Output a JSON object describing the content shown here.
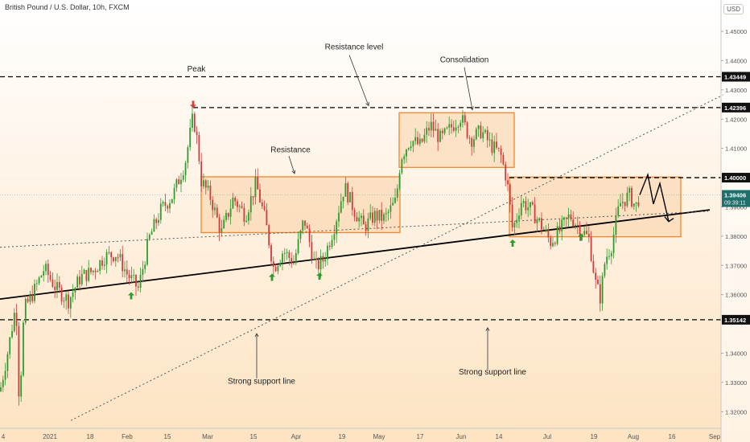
{
  "header": {
    "title": "British Pound / U.S. Dollar, 10h, FXCM",
    "currency": "USD"
  },
  "colors": {
    "bg_top": "#ffffff",
    "bg_bottom": "#fde3c2",
    "up": "#2e9b2e",
    "down": "#d03a3a",
    "box_stroke": "#f5852a",
    "box_fill": "#f9c99a",
    "price_tag": "#1f6f6a",
    "arrow_green": "#2e9b2e",
    "arrow_red": "#e53935"
  },
  "chart_data": {
    "type": "candlestick",
    "ylim": [
      1.315,
      1.458
    ],
    "y_ticks": [
      {
        "v": 1.45,
        "label": "1.45000"
      },
      {
        "v": 1.44,
        "label": "1.44000"
      },
      {
        "v": 1.43,
        "label": "1.43000"
      },
      {
        "v": 1.42,
        "label": "1.42000"
      },
      {
        "v": 1.41,
        "label": "1.41000"
      },
      {
        "v": 1.39,
        "label": "1.39000"
      },
      {
        "v": 1.38,
        "label": "1.38000"
      },
      {
        "v": 1.37,
        "label": "1.37000"
      },
      {
        "v": 1.36,
        "label": "1.36000"
      },
      {
        "v": 1.34,
        "label": "1.34000"
      },
      {
        "v": 1.33,
        "label": "1.33000"
      },
      {
        "v": 1.32,
        "label": "1.32000"
      }
    ],
    "x_range": [
      0,
      900
    ],
    "x_ticks": [
      {
        "x": 4,
        "label": "4"
      },
      {
        "x": 62,
        "label": "2021"
      },
      {
        "x": 112,
        "label": "18"
      },
      {
        "x": 158,
        "label": "Feb"
      },
      {
        "x": 208,
        "label": "15"
      },
      {
        "x": 258,
        "label": "Mar"
      },
      {
        "x": 315,
        "label": "15"
      },
      {
        "x": 368,
        "label": "Apr"
      },
      {
        "x": 425,
        "label": "19"
      },
      {
        "x": 471,
        "label": "May"
      },
      {
        "x": 522,
        "label": "17"
      },
      {
        "x": 573,
        "label": "Jun"
      },
      {
        "x": 620,
        "label": "14"
      },
      {
        "x": 680,
        "label": "Jul"
      },
      {
        "x": 738,
        "label": "19"
      },
      {
        "x": 787,
        "label": "Aug"
      },
      {
        "x": 835,
        "label": "16"
      },
      {
        "x": 888,
        "label": "Sep"
      }
    ],
    "price_path": [
      [
        0,
        1.327
      ],
      [
        10,
        1.341
      ],
      [
        20,
        1.357
      ],
      [
        24,
        1.322
      ],
      [
        30,
        1.355
      ],
      [
        42,
        1.361
      ],
      [
        55,
        1.369
      ],
      [
        70,
        1.362
      ],
      [
        85,
        1.358
      ],
      [
        100,
        1.366
      ],
      [
        115,
        1.368
      ],
      [
        130,
        1.373
      ],
      [
        145,
        1.374
      ],
      [
        158,
        1.367
      ],
      [
        172,
        1.362
      ],
      [
        185,
        1.379
      ],
      [
        200,
        1.389
      ],
      [
        215,
        1.394
      ],
      [
        230,
        1.405
      ],
      [
        240,
        1.421
      ],
      [
        246,
        1.411
      ],
      [
        250,
        1.399
      ],
      [
        262,
        1.393
      ],
      [
        275,
        1.381
      ],
      [
        290,
        1.393
      ],
      [
        305,
        1.387
      ],
      [
        318,
        1.398
      ],
      [
        330,
        1.385
      ],
      [
        340,
        1.369
      ],
      [
        352,
        1.375
      ],
      [
        365,
        1.371
      ],
      [
        378,
        1.386
      ],
      [
        392,
        1.369
      ],
      [
        402,
        1.372
      ],
      [
        415,
        1.383
      ],
      [
        428,
        1.397
      ],
      [
        440,
        1.389
      ],
      [
        452,
        1.383
      ],
      [
        465,
        1.387
      ],
      [
        478,
        1.386
      ],
      [
        492,
        1.392
      ],
      [
        498,
        1.407
      ],
      [
        510,
        1.413
      ],
      [
        522,
        1.411
      ],
      [
        535,
        1.418
      ],
      [
        548,
        1.413
      ],
      [
        560,
        1.417
      ],
      [
        572,
        1.421
      ],
      [
        585,
        1.413
      ],
      [
        598,
        1.416
      ],
      [
        610,
        1.411
      ],
      [
        622,
        1.408
      ],
      [
        630,
        1.399
      ],
      [
        637,
        1.382
      ],
      [
        648,
        1.392
      ],
      [
        660,
        1.389
      ],
      [
        672,
        1.384
      ],
      [
        684,
        1.378
      ],
      [
        696,
        1.382
      ],
      [
        708,
        1.387
      ],
      [
        720,
        1.383
      ],
      [
        732,
        1.379
      ],
      [
        740,
        1.364
      ],
      [
        746,
        1.359
      ],
      [
        752,
        1.372
      ],
      [
        760,
        1.377
      ],
      [
        770,
        1.391
      ],
      [
        782,
        1.394
      ],
      [
        790,
        1.39
      ],
      [
        795,
        1.3941
      ]
    ],
    "projection": [
      [
        795,
        1.3941
      ],
      [
        805,
        1.401
      ],
      [
        812,
        1.391
      ],
      [
        820,
        1.398
      ],
      [
        831,
        1.385
      ]
    ],
    "levels": [
      {
        "price": 1.43449,
        "label": "1.43449"
      },
      {
        "price": 1.42396,
        "label": "1.42396",
        "x_start": 240
      },
      {
        "price": 1.4,
        "label": "1.40000",
        "x_start": 633
      },
      {
        "price": 1.35142,
        "label": "1.35142"
      }
    ],
    "current_price": {
      "label": "1.39406",
      "countdown": "09:39:11",
      "value": 1.3941
    },
    "zones": [
      {
        "x0": 250,
        "x1": 497,
        "y0": 1.3812,
        "y1": 1.4003
      },
      {
        "x0": 496,
        "x1": 639,
        "y0": 1.4035,
        "y1": 1.4222
      },
      {
        "x0": 633,
        "x1": 846,
        "y0": 1.3798,
        "y1": 1.4002
      }
    ],
    "trendlines": [
      {
        "name": "support-solid",
        "style": "solid",
        "from": [
          0,
          1.3585
        ],
        "to": [
          882,
          1.389
        ]
      },
      {
        "name": "support-dotted-long",
        "style": "dotted",
        "from": [
          88,
          1.317
        ],
        "to": [
          900,
          1.4285
        ]
      },
      {
        "name": "support-dotted-flat",
        "style": "dotted",
        "from": [
          0,
          1.3762
        ],
        "to": [
          880,
          1.3885
        ]
      }
    ],
    "annotations": [
      {
        "text": "Peak",
        "x": 244,
        "y": 1.4363,
        "anchor": "middle"
      },
      {
        "text": "Resistance level",
        "x": 440,
        "y": 1.4438,
        "anchor": "middle"
      },
      {
        "text": "Consolidation",
        "x": 577,
        "y": 1.4395,
        "anchor": "middle"
      },
      {
        "text": "Resistance",
        "x": 361,
        "y": 1.4087,
        "anchor": "middle"
      },
      {
        "text": "Strong support line",
        "x": 325,
        "y": 1.3296,
        "anchor": "middle"
      },
      {
        "text": "Strong support line",
        "x": 612,
        "y": 1.3327,
        "anchor": "middle"
      }
    ],
    "pointer_lines": [
      {
        "from": [
          434,
          1.4419
        ],
        "to": [
          458,
          1.4246
        ]
      },
      {
        "from": [
          577,
          1.4377
        ],
        "to": [
          587,
          1.4232
        ]
      },
      {
        "from": [
          359,
          1.4074
        ],
        "to": [
          366,
          1.4014
        ]
      },
      {
        "from": [
          319,
          1.3314
        ],
        "to": [
          319,
          1.3467
        ]
      },
      {
        "from": [
          606,
          1.3343
        ],
        "to": [
          606,
          1.3487
        ]
      }
    ],
    "markers": [
      {
        "type": "down",
        "color": "red",
        "x": 240,
        "y": 1.4252
      },
      {
        "type": "up",
        "color": "green",
        "x": 163,
        "y": 1.3595
      },
      {
        "type": "up",
        "color": "green",
        "x": 338,
        "y": 1.3658
      },
      {
        "type": "up",
        "color": "green",
        "x": 397,
        "y": 1.3662
      },
      {
        "type": "up",
        "color": "green",
        "x": 637,
        "y": 1.3775
      },
      {
        "type": "up",
        "color": "green",
        "x": 722,
        "y": 1.3795
      }
    ]
  }
}
